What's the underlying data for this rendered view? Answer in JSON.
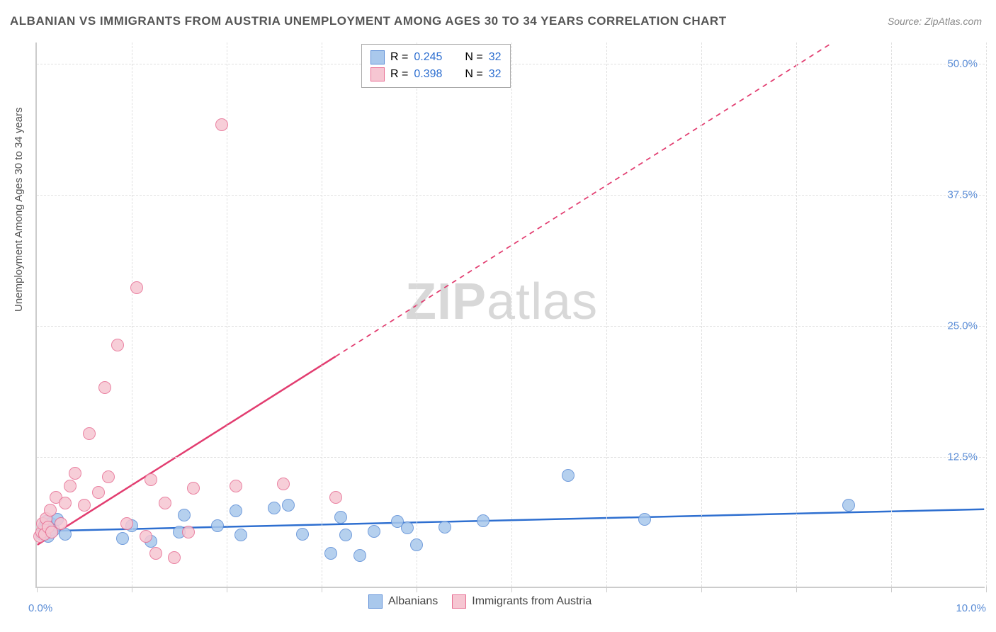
{
  "title": "ALBANIAN VS IMMIGRANTS FROM AUSTRIA UNEMPLOYMENT AMONG AGES 30 TO 34 YEARS CORRELATION CHART",
  "source": "Source: ZipAtlas.com",
  "y_axis_label": "Unemployment Among Ages 30 to 34 years",
  "watermark": {
    "part1": "ZIP",
    "part2": "atlas"
  },
  "chart": {
    "type": "scatter",
    "xlim": [
      0,
      10
    ],
    "ylim": [
      0,
      52
    ],
    "x_ticks": [
      0,
      1,
      2,
      3,
      4,
      5,
      6,
      7,
      8,
      9,
      10
    ],
    "y_gridlines": [
      12.5,
      25.0,
      37.5,
      50.0
    ],
    "y_tick_labels": [
      "12.5%",
      "25.0%",
      "37.5%",
      "50.0%"
    ],
    "x_label_min": "0.0%",
    "x_label_max": "10.0%",
    "background_color": "#ffffff",
    "grid_color": "#e0e0e0",
    "axis_color": "#cccccc",
    "marker_radius": 9,
    "marker_stroke_width": 1.5,
    "line_width": 2.5,
    "series": [
      {
        "name": "Albanians",
        "fill_color": "#a9c8ec",
        "stroke_color": "#5b8dd6",
        "line_color": "#2e6fd0",
        "r_value": "0.245",
        "n_value": "32",
        "trend_solid_end_x": 10.0,
        "trend": {
          "x1": 0.0,
          "y1": 5.3,
          "x2": 10.0,
          "y2": 7.4
        },
        "points": [
          [
            0.05,
            5.0
          ],
          [
            0.08,
            5.8
          ],
          [
            0.1,
            6.2
          ],
          [
            0.12,
            4.8
          ],
          [
            0.15,
            6.0
          ],
          [
            0.18,
            5.4
          ],
          [
            0.22,
            6.4
          ],
          [
            0.3,
            5.0
          ],
          [
            0.9,
            4.6
          ],
          [
            1.0,
            5.8
          ],
          [
            1.2,
            4.3
          ],
          [
            1.5,
            5.2
          ],
          [
            1.55,
            6.8
          ],
          [
            1.9,
            5.8
          ],
          [
            2.1,
            7.2
          ],
          [
            2.15,
            4.9
          ],
          [
            2.5,
            7.5
          ],
          [
            2.65,
            7.8
          ],
          [
            2.8,
            5.0
          ],
          [
            3.1,
            3.2
          ],
          [
            3.2,
            6.6
          ],
          [
            3.25,
            4.9
          ],
          [
            3.4,
            3.0
          ],
          [
            3.55,
            5.3
          ],
          [
            3.8,
            6.2
          ],
          [
            3.9,
            5.6
          ],
          [
            4.0,
            4.0
          ],
          [
            4.3,
            5.7
          ],
          [
            4.7,
            6.3
          ],
          [
            5.6,
            10.6
          ],
          [
            6.4,
            6.4
          ],
          [
            8.55,
            7.8
          ]
        ]
      },
      {
        "name": "Immigrants from Austria",
        "fill_color": "#f6c6d2",
        "stroke_color": "#e76d92",
        "line_color": "#e23d70",
        "r_value": "0.398",
        "n_value": "32",
        "trend_solid_end_x": 3.15,
        "trend": {
          "x1": 0.0,
          "y1": 4.0,
          "x2": 8.4,
          "y2": 52.0
        },
        "points": [
          [
            0.03,
            4.8
          ],
          [
            0.05,
            5.2
          ],
          [
            0.06,
            6.0
          ],
          [
            0.08,
            5.0
          ],
          [
            0.1,
            6.5
          ],
          [
            0.12,
            5.7
          ],
          [
            0.14,
            7.3
          ],
          [
            0.16,
            5.2
          ],
          [
            0.2,
            8.5
          ],
          [
            0.25,
            6.0
          ],
          [
            0.3,
            8.0
          ],
          [
            0.35,
            9.6
          ],
          [
            0.4,
            10.8
          ],
          [
            0.5,
            7.8
          ],
          [
            0.55,
            14.6
          ],
          [
            0.65,
            9.0
          ],
          [
            0.72,
            19.0
          ],
          [
            0.75,
            10.5
          ],
          [
            0.85,
            23.0
          ],
          [
            0.95,
            6.0
          ],
          [
            1.05,
            28.5
          ],
          [
            1.15,
            4.8
          ],
          [
            1.2,
            10.2
          ],
          [
            1.25,
            3.2
          ],
          [
            1.35,
            8.0
          ],
          [
            1.45,
            2.8
          ],
          [
            1.6,
            5.2
          ],
          [
            1.65,
            9.4
          ],
          [
            1.95,
            44.0
          ],
          [
            2.1,
            9.6
          ],
          [
            2.6,
            9.8
          ],
          [
            3.15,
            8.5
          ]
        ]
      }
    ]
  },
  "legend_top": {
    "r_label": "R =",
    "n_label": "N ="
  },
  "legend_bottom": {
    "series1_label": "Albanians",
    "series2_label": "Immigrants from Austria"
  },
  "colors": {
    "title_color": "#555555",
    "tick_label_color": "#5b8dd6",
    "legend_text_color": "#444444",
    "r_value_color": "#2e6fd0"
  }
}
